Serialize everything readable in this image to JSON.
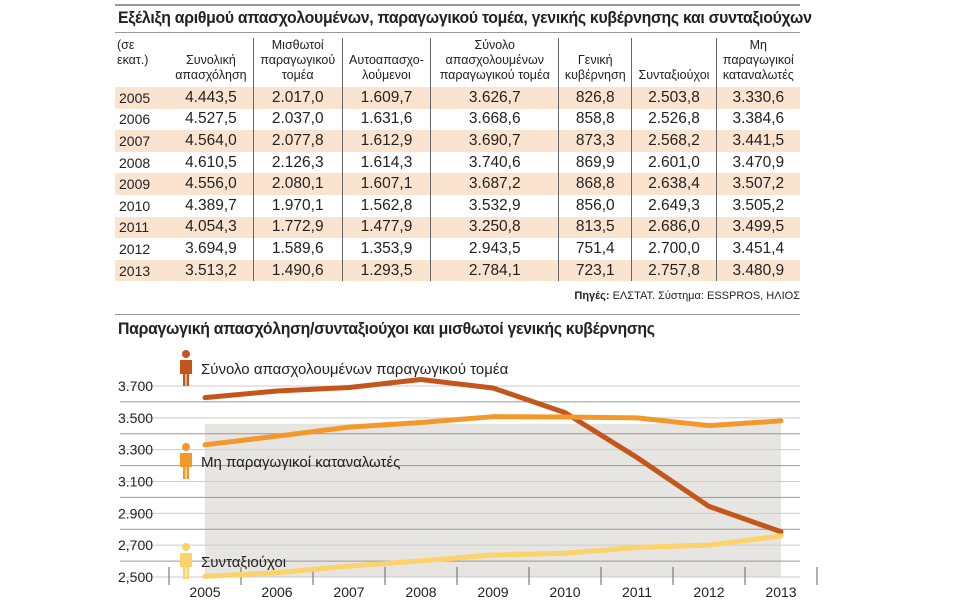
{
  "table": {
    "title": "Εξέλιξη αριθμού απασχολουμένων, παραγωγικού τομέα, γενικής κυβέρνησης και συνταξιούχων",
    "unit": "(σε εκατ.)",
    "headers": [
      [
        "Συνολική",
        "απασχόληση"
      ],
      [
        "Μισθωτοί",
        "παραγωγικού",
        "τομέα"
      ],
      [
        "Αυτοαπασχο-",
        "λούμενοι"
      ],
      [
        "Σύνολο",
        "απασχολουμένων",
        "παραγωγικού τομέα"
      ],
      [
        "Γενική",
        "κυβέρνηση"
      ],
      [
        "Συνταξιούχοι"
      ],
      [
        "Μη",
        "παραγωγικοί",
        "καταναλωτές"
      ]
    ],
    "rows": [
      [
        "2005",
        "4.443,5",
        "2.017,0",
        "1.609,7",
        "3.626,7",
        "826,8",
        "2.503,8",
        "3.330,6"
      ],
      [
        "2006",
        "4.527,5",
        "2.037,0",
        "1.631,6",
        "3.668,6",
        "858,8",
        "2.526,8",
        "3.384,6"
      ],
      [
        "2007",
        "4.564,0",
        "2.077,8",
        "1.612,9",
        "3.690,7",
        "873,3",
        "2.568,2",
        "3.441,5"
      ],
      [
        "2008",
        "4.610,5",
        "2.126,3",
        "1.614,3",
        "3.740,6",
        "869,9",
        "2.601,0",
        "3.470,9"
      ],
      [
        "2009",
        "4.556,0",
        "2.080,1",
        "1.607,1",
        "3.687,2",
        "868,8",
        "2.638,4",
        "3.507,2"
      ],
      [
        "2010",
        "4.389,7",
        "1.970,1",
        "1.562,8",
        "3.532,9",
        "856,0",
        "2.649,3",
        "3.505,2"
      ],
      [
        "2011",
        "4.054,3",
        "1.772,9",
        "1.477,9",
        "3.250,8",
        "813,5",
        "2.686,0",
        "3.499,5"
      ],
      [
        "2012",
        "3.694,9",
        "1.589,6",
        "1.353,9",
        "2.943,5",
        "751,4",
        "2.700,0",
        "3.451,4"
      ],
      [
        "2013",
        "3.513,2",
        "1.490,6",
        "1.293,5",
        "2.784,1",
        "723,1",
        "2.757,8",
        "3.480,9"
      ]
    ],
    "source_label": "Πηγές:",
    "source_text": " ΕΛΣΤΑΤ. Σύστημα: ESSPROS, ΗΛΙΟΣ"
  },
  "chart_data": {
    "type": "line",
    "title": "Παραγωγική απασχόληση/συνταξιούχοι και μισθωτοί γενικής κυβέρνησης",
    "x": [
      "2005",
      "2006",
      "2007",
      "2008",
      "2009",
      "2010",
      "2011",
      "2012",
      "2013"
    ],
    "ylim": [
      2500,
      3700
    ],
    "yticks": [
      {
        "v": 3700,
        "label": "3.700"
      },
      {
        "v": 3500,
        "label": "3.500"
      },
      {
        "v": 3300,
        "label": "3.300"
      },
      {
        "v": 3100,
        "label": "3.100"
      },
      {
        "v": 2900,
        "label": "2.900"
      },
      {
        "v": 2700,
        "label": "2,700"
      },
      {
        "v": 2500,
        "label": "2,500"
      }
    ],
    "grid": true,
    "series": [
      {
        "name": "Σύνολο απασχολουμένων παραγωγικού τομέα",
        "color": "#c4561c",
        "icon": "person-icon",
        "values": [
          3626.7,
          3668.6,
          3690.7,
          3740.6,
          3687.2,
          3532.9,
          3250.8,
          2943.5,
          2784.1
        ]
      },
      {
        "name": "Μη παραγωγικοί καταναλωτές",
        "color": "#f3982a",
        "icon": "person-icon",
        "values": [
          3330.6,
          3384.6,
          3441.5,
          3470.9,
          3507.2,
          3505.2,
          3499.5,
          3451.4,
          3480.9
        ]
      },
      {
        "name": "Συνταξιούχοι",
        "color": "#fcd26a",
        "icon": "person-icon",
        "values": [
          2503.8,
          2526.8,
          2568.2,
          2601.0,
          2638.4,
          2649.3,
          2686.0,
          2700.0,
          2757.8
        ]
      }
    ]
  }
}
